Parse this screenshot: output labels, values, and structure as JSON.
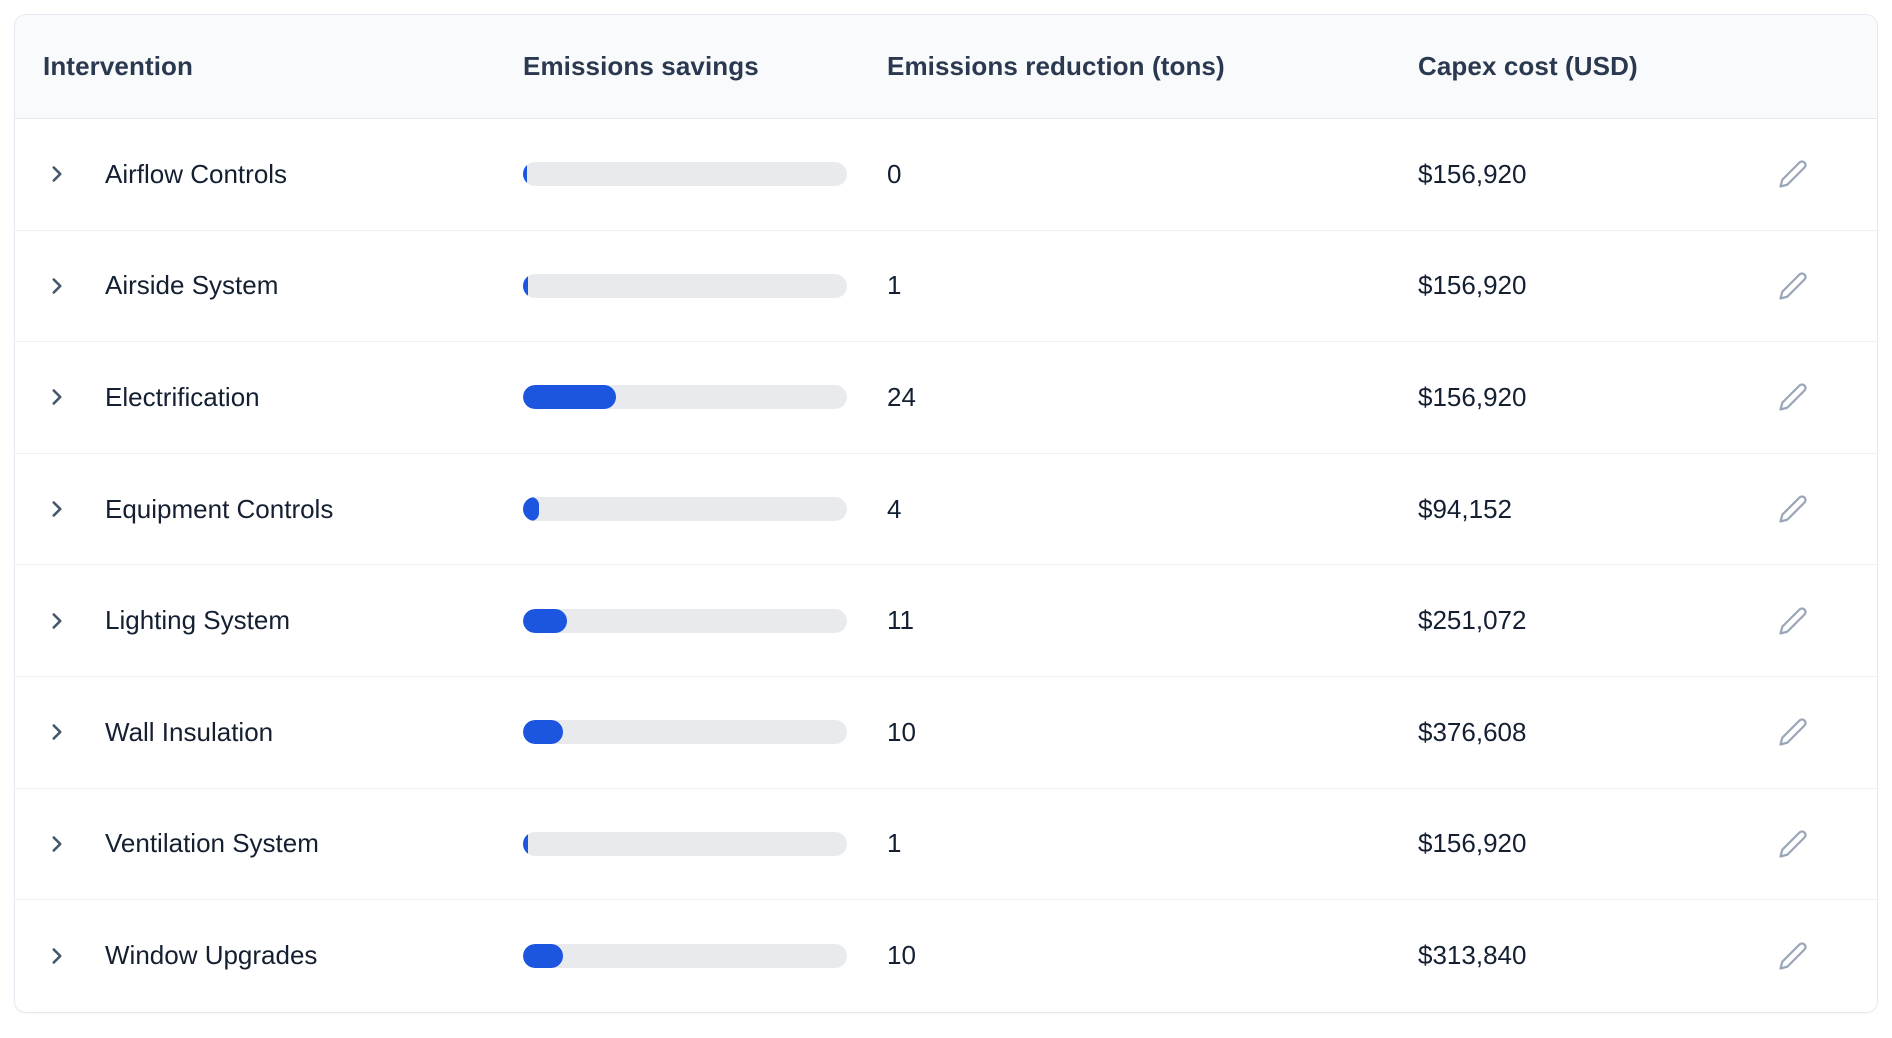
{
  "table": {
    "columns": [
      {
        "key": "intervention",
        "label": "Intervention"
      },
      {
        "key": "savings",
        "label": "Emissions savings"
      },
      {
        "key": "reduction",
        "label": "Emissions reduction (tons)"
      },
      {
        "key": "capex",
        "label": "Capex cost (USD)"
      }
    ],
    "rows": [
      {
        "name": "Airflow Controls",
        "savings_pct": 0.9,
        "reduction_tons": "0",
        "capex": "$156,920"
      },
      {
        "name": "Airside System",
        "savings_pct": 1.5,
        "reduction_tons": "1",
        "capex": "$156,920"
      },
      {
        "name": "Electrification",
        "savings_pct": 28.6,
        "reduction_tons": "24",
        "capex": "$156,920"
      },
      {
        "name": "Equipment Controls",
        "savings_pct": 5.0,
        "reduction_tons": "4",
        "capex": "$94,152"
      },
      {
        "name": "Lighting System",
        "savings_pct": 13.5,
        "reduction_tons": "11",
        "capex": "$251,072"
      },
      {
        "name": "Wall Insulation",
        "savings_pct": 12.3,
        "reduction_tons": "10",
        "capex": "$376,608"
      },
      {
        "name": "Ventilation System",
        "savings_pct": 1.5,
        "reduction_tons": "1",
        "capex": "$156,920"
      },
      {
        "name": "Window Upgrades",
        "savings_pct": 12.3,
        "reduction_tons": "10",
        "capex": "$313,840"
      }
    ],
    "icons": {
      "expand": "chevron-right-icon",
      "edit": "pencil-icon"
    },
    "colors": {
      "bar_fill": "#1c56e0",
      "bar_track": "#e8eaee",
      "header_bg": "#f8fafc",
      "border": "#e6e9f0",
      "chevron": "#47566b",
      "icon": "#9aa6b8"
    }
  }
}
